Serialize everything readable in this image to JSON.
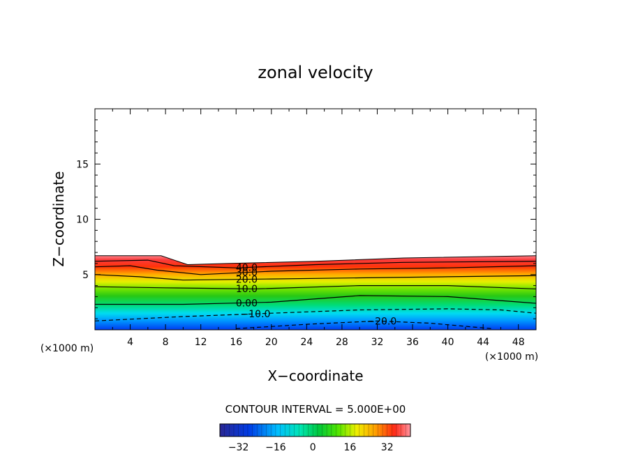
{
  "chart_data": {
    "type": "contour",
    "title": "zonal velocity",
    "xlabel": "X−coordinate",
    "ylabel": "Z−coordinate",
    "x_unit_left": "(×1000 m)",
    "x_unit_right": "(×1000 m)",
    "xlim": [
      0,
      50
    ],
    "ylim": [
      0,
      20
    ],
    "x_ticks": [
      4,
      8,
      12,
      16,
      20,
      24,
      28,
      32,
      36,
      40,
      44,
      48
    ],
    "y_ticks": [
      5,
      10,
      15
    ],
    "contour_interval_text": "CONTOUR INTERVAL = 5.000E+00",
    "contour_labels": [
      "40.0",
      "30.0",
      "20.0",
      "10.0",
      "0.00",
      "−10.0",
      "−20.0"
    ],
    "colorbar": {
      "range": [
        -40,
        42
      ],
      "ticks": [
        -32,
        -16,
        0,
        16,
        32
      ],
      "tick_labels": [
        "−32",
        "−16",
        "0",
        "16",
        "32"
      ]
    },
    "terrain_top": [
      [
        0,
        6.7
      ],
      [
        7.5,
        6.7
      ],
      [
        10.5,
        5.9
      ],
      [
        15,
        6.0
      ],
      [
        25,
        6.2
      ],
      [
        35,
        6.5
      ],
      [
        50,
        6.7
      ]
    ],
    "contour_lines": [
      {
        "value": 40,
        "points": [
          [
            0,
            6.2
          ],
          [
            6,
            6.3
          ],
          [
            9,
            5.8
          ],
          [
            16,
            5.6
          ],
          [
            25,
            5.9
          ],
          [
            35,
            6.1
          ],
          [
            50,
            6.2
          ]
        ]
      },
      {
        "value": 30,
        "points": [
          [
            0,
            5.7
          ],
          [
            4,
            5.8
          ],
          [
            7,
            5.4
          ],
          [
            12,
            5.0
          ],
          [
            20,
            5.3
          ],
          [
            30,
            5.5
          ],
          [
            40,
            5.6
          ],
          [
            50,
            5.8
          ]
        ]
      },
      {
        "value": 20,
        "points": [
          [
            0,
            5.0
          ],
          [
            5,
            4.8
          ],
          [
            10,
            4.5
          ],
          [
            20,
            4.6
          ],
          [
            30,
            4.7
          ],
          [
            40,
            4.8
          ],
          [
            50,
            4.9
          ]
        ]
      },
      {
        "value": 10,
        "points": [
          [
            0,
            3.9
          ],
          [
            8,
            3.8
          ],
          [
            18,
            3.7
          ],
          [
            30,
            4.0
          ],
          [
            40,
            4.0
          ],
          [
            50,
            3.7
          ]
        ]
      },
      {
        "value": 0,
        "points": [
          [
            0,
            2.3
          ],
          [
            10,
            2.3
          ],
          [
            20,
            2.5
          ],
          [
            30,
            3.1
          ],
          [
            40,
            3.0
          ],
          [
            50,
            2.4
          ]
        ]
      },
      {
        "value": -10,
        "points": [
          [
            0,
            0.8
          ],
          [
            10,
            1.2
          ],
          [
            20,
            1.5
          ],
          [
            30,
            1.8
          ],
          [
            40,
            1.9
          ],
          [
            46,
            1.8
          ],
          [
            50,
            1.5
          ]
        ]
      },
      {
        "value": -20,
        "points": [
          [
            16,
            0.1
          ],
          [
            24,
            0.5
          ],
          [
            32,
            0.8
          ],
          [
            38,
            0.6
          ],
          [
            45,
            0.1
          ]
        ]
      }
    ]
  }
}
